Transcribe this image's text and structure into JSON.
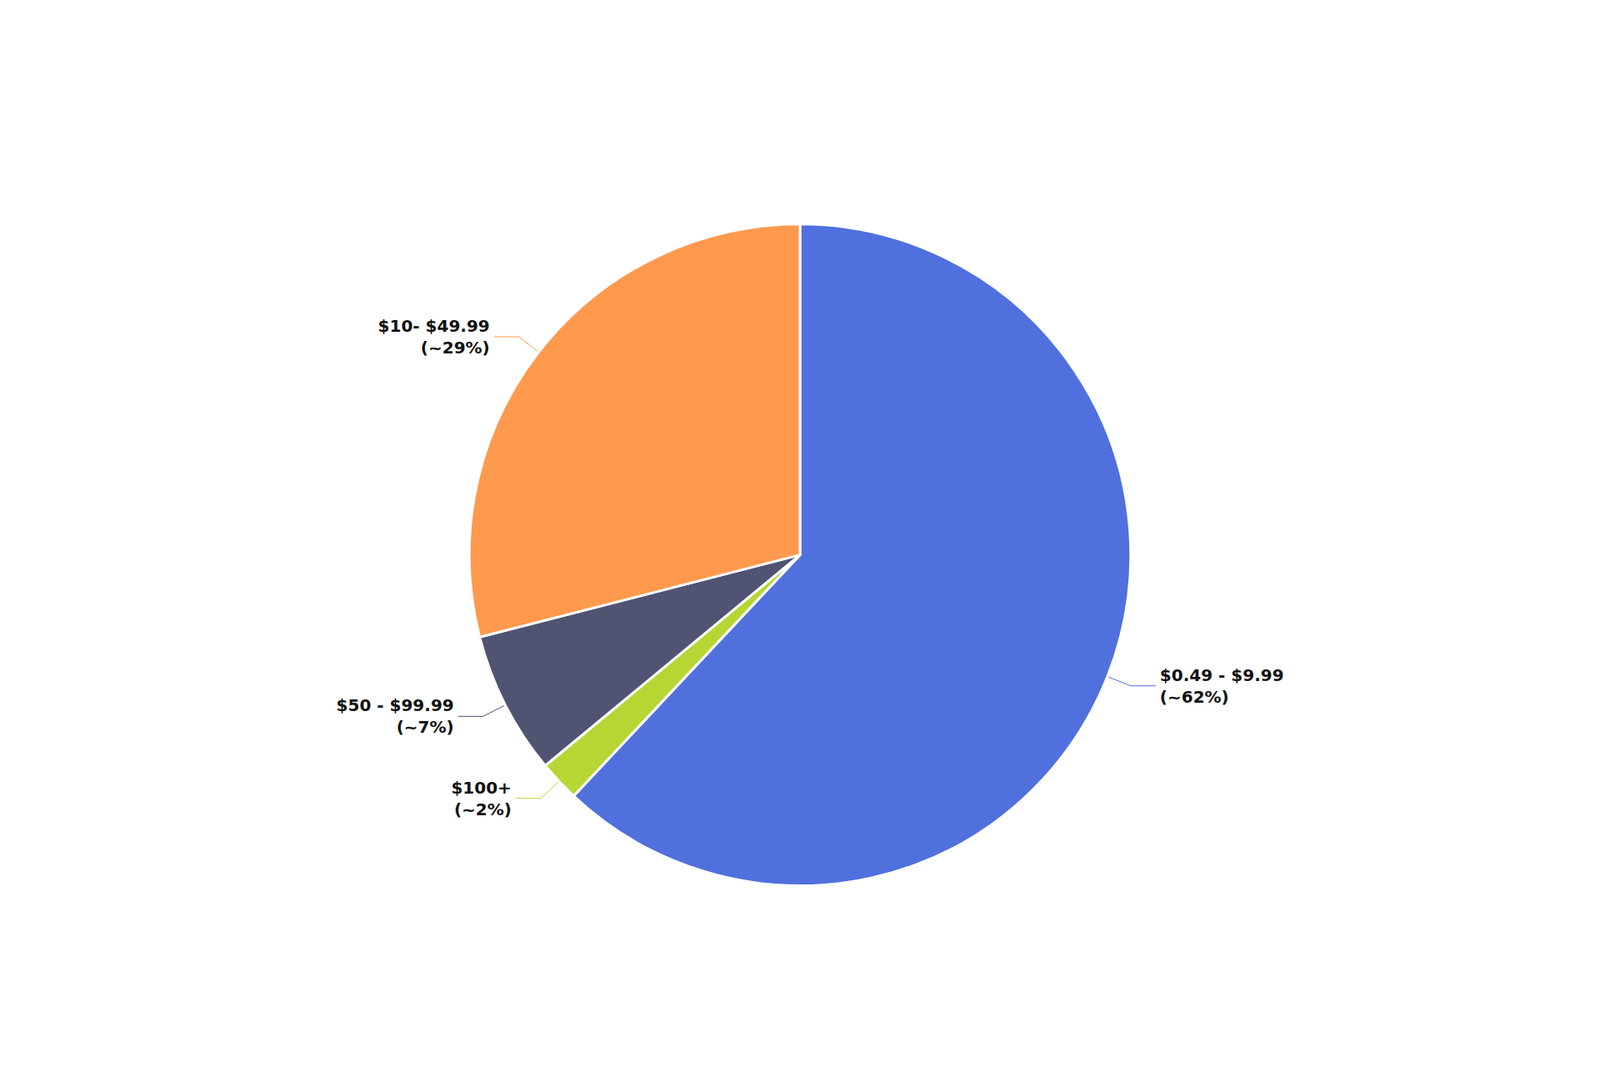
{
  "chart_data": {
    "type": "pie",
    "categories": [
      "$0.49 - $9.99\n(~62%)",
      "$100+\n(~2%)",
      "$50 - $99.99\n(~7%)",
      "$10- $49.99\n(~29%)"
    ],
    "values": [
      62,
      2,
      7,
      29
    ]
  }
}
